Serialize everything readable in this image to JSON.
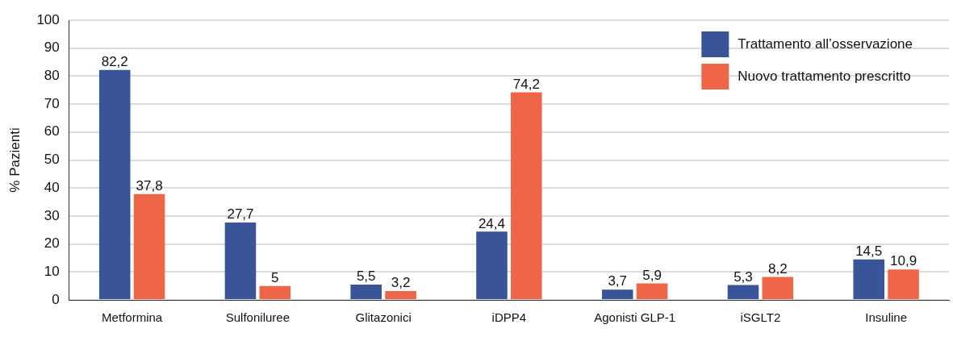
{
  "chart_data": {
    "type": "bar",
    "ylabel": "% Pazienti",
    "categories": [
      "Metformina",
      "Sulfoniluree",
      "Glitazonici",
      "iDPP4",
      "Agonisti GLP-1",
      "iSGLT2",
      "Insuline"
    ],
    "series": [
      {
        "name": "Trattamento all’osservazione",
        "color": "#3a5499",
        "values": [
          82.2,
          27.7,
          5.5,
          24.4,
          3.7,
          5.3,
          14.5
        ],
        "value_labels": [
          "82,2",
          "27,7",
          "5,5",
          "24,4",
          "3,7",
          "5,3",
          "14,5"
        ]
      },
      {
        "name": "Nuovo trattamento prescritto",
        "color": "#ef6548",
        "values": [
          37.8,
          5,
          3.2,
          74.2,
          5.9,
          8.2,
          10.9
        ],
        "value_labels": [
          "37,8",
          "5",
          "3,2",
          "74,2",
          "5,9",
          "8,2",
          "10,9"
        ]
      }
    ],
    "ylim": [
      0,
      100
    ],
    "yticks": [
      0,
      10,
      20,
      30,
      40,
      50,
      60,
      70,
      80,
      90,
      100
    ],
    "grid": "y",
    "legend": "top right"
  }
}
